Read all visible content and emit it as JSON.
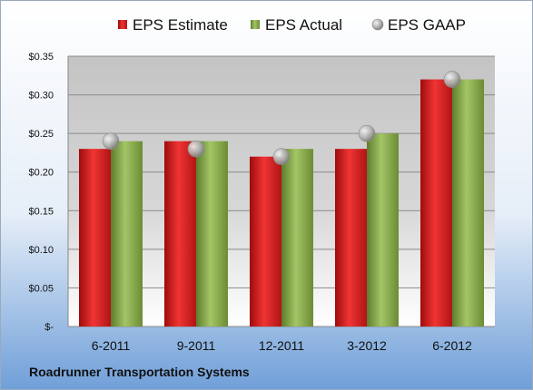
{
  "chart_data": {
    "type": "bar",
    "categories": [
      "6-2011",
      "9-2011",
      "12-2011",
      "3-2012",
      "6-2012"
    ],
    "series": [
      {
        "name": "EPS Estimate",
        "values": [
          0.23,
          0.24,
          0.22,
          0.23,
          0.32
        ],
        "color": "#e02020"
      },
      {
        "name": "EPS Actual",
        "values": [
          0.24,
          0.24,
          0.23,
          0.25,
          0.32
        ],
        "color": "#8fb24a"
      }
    ],
    "markers": {
      "name": "EPS GAAP",
      "values": [
        0.24,
        0.23,
        0.22,
        0.25,
        0.32
      ],
      "color": "#a8a8a8"
    },
    "yticks": [
      "$-",
      "$0.05",
      "$0.10",
      "$0.15",
      "$0.20",
      "$0.25",
      "$0.30",
      "$0.35"
    ],
    "ylim": [
      0,
      0.35
    ],
    "grid": true,
    "legend_position": "top",
    "footer": "Roadrunner Transportation Systems"
  }
}
